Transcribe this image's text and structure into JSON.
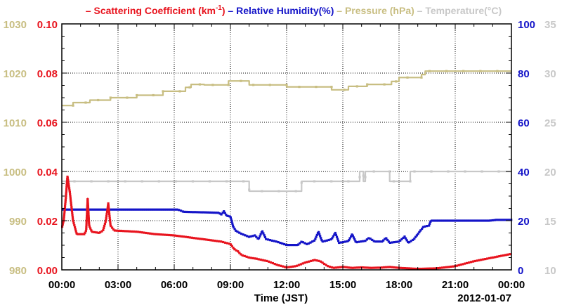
{
  "chart_data": {
    "type": "line",
    "legend": [
      {
        "prefix": "– ",
        "text": "Scattering Coefficient (km",
        "sup": "-1",
        "suffix": ")",
        "color": "#e8141e"
      },
      {
        "prefix": " – ",
        "text": "Relative Humidity(%)",
        "sup": "",
        "suffix": "",
        "color": "#1414c8"
      },
      {
        "prefix": " – ",
        "text": "Pressure (hPa)",
        "sup": "",
        "suffix": "",
        "color": "#c8be82"
      },
      {
        "prefix": " – ",
        "text": "Temperature",
        "sup": "",
        "suffix": "(°C)",
        "color": "#c8c8c8"
      }
    ],
    "xlabel": "Time (JST)",
    "date_label": "2012-01-07",
    "x_ticks": [
      "00:00",
      "03:00",
      "06:00",
      "09:00",
      "12:00",
      "15:00",
      "18:00",
      "21:00",
      "00:00"
    ],
    "x_range_hours": [
      0,
      24
    ],
    "axes": {
      "pressure": {
        "ticks": [
          "980",
          "990",
          "1000",
          "1010",
          "1020",
          "1030"
        ],
        "range": [
          980,
          1030
        ],
        "color": "#c8be82"
      },
      "scattering": {
        "ticks": [
          "0.00",
          "0.02",
          "0.04",
          "0.06",
          "0.08",
          "0.10"
        ],
        "range": [
          0,
          0.1
        ],
        "color": "#e8141e"
      },
      "humidity": {
        "ticks": [
          "0",
          "20",
          "40",
          "60",
          "80",
          "100"
        ],
        "range": [
          0,
          100
        ],
        "color": "#1414c8"
      },
      "temperature": {
        "ticks": [
          "10",
          "15",
          "20",
          "25",
          "30",
          "35"
        ],
        "range": [
          10,
          35
        ],
        "color": "#c8c8c8"
      }
    },
    "grid": true,
    "series": [
      {
        "name": "Pressure (hPa)",
        "axis": "pressure",
        "color": "#c8be82",
        "step": true,
        "points": [
          [
            0,
            1013.4
          ],
          [
            0.6,
            1013.4
          ],
          [
            0.6,
            1014.0
          ],
          [
            1.5,
            1014.0
          ],
          [
            1.5,
            1014.5
          ],
          [
            2.6,
            1014.5
          ],
          [
            2.6,
            1015.0
          ],
          [
            4.0,
            1015.0
          ],
          [
            4.0,
            1015.5
          ],
          [
            5.4,
            1015.5
          ],
          [
            5.4,
            1016.3
          ],
          [
            6.6,
            1016.3
          ],
          [
            6.6,
            1017.1
          ],
          [
            6.9,
            1017.1
          ],
          [
            6.9,
            1017.7
          ],
          [
            7.6,
            1017.7
          ],
          [
            7.6,
            1017.6
          ],
          [
            8.9,
            1017.6
          ],
          [
            8.9,
            1018.4
          ],
          [
            10.0,
            1018.4
          ],
          [
            10.0,
            1017.6
          ],
          [
            12.0,
            1017.6
          ],
          [
            12.0,
            1017.2
          ],
          [
            14.4,
            1017.2
          ],
          [
            14.4,
            1016.6
          ],
          [
            15.3,
            1016.6
          ],
          [
            15.3,
            1017.3
          ],
          [
            16.3,
            1017.3
          ],
          [
            16.3,
            1017.7
          ],
          [
            17.6,
            1017.7
          ],
          [
            17.6,
            1018.3
          ],
          [
            18.0,
            1018.3
          ],
          [
            18.0,
            1019.1
          ],
          [
            19.2,
            1019.1
          ],
          [
            19.2,
            1019.7
          ],
          [
            19.4,
            1019.7
          ],
          [
            19.4,
            1020.4
          ],
          [
            24,
            1020.4
          ]
        ]
      },
      {
        "name": "Temperature (°C)",
        "axis": "temperature",
        "color": "#c8c8c8",
        "step": true,
        "points": [
          [
            0,
            19.0
          ],
          [
            10.0,
            19.0
          ],
          [
            10.0,
            18.0
          ],
          [
            12.8,
            18.0
          ],
          [
            12.8,
            19.0
          ],
          [
            15.9,
            19.0
          ],
          [
            15.9,
            20.0
          ],
          [
            16.1,
            20.0
          ],
          [
            16.1,
            19.0
          ],
          [
            16.2,
            19.0
          ],
          [
            16.2,
            20.0
          ],
          [
            17.5,
            20.0
          ],
          [
            17.5,
            19.0
          ],
          [
            18.6,
            19.0
          ],
          [
            18.6,
            20.0
          ],
          [
            24,
            20.0
          ]
        ]
      },
      {
        "name": "Relative Humidity(%)",
        "axis": "humidity",
        "color": "#1414c8",
        "step": false,
        "points": [
          [
            0,
            24.5
          ],
          [
            3,
            24.5
          ],
          [
            6.2,
            24.5
          ],
          [
            6.5,
            23.6
          ],
          [
            7.5,
            23.4
          ],
          [
            8.4,
            23.2
          ],
          [
            8.5,
            22.4
          ],
          [
            8.65,
            23.8
          ],
          [
            8.8,
            22.0
          ],
          [
            9.0,
            21.7
          ],
          [
            9.15,
            17.5
          ],
          [
            9.3,
            15.8
          ],
          [
            9.6,
            14.6
          ],
          [
            10.0,
            13.4
          ],
          [
            10.3,
            14.0
          ],
          [
            10.5,
            12.5
          ],
          [
            10.7,
            15.8
          ],
          [
            10.9,
            12.5
          ],
          [
            11.5,
            11.4
          ],
          [
            12.0,
            10.1
          ],
          [
            12.6,
            10.1
          ],
          [
            12.8,
            11.5
          ],
          [
            13.1,
            10.4
          ],
          [
            13.5,
            12.0
          ],
          [
            13.7,
            15.5
          ],
          [
            13.9,
            11.5
          ],
          [
            14.2,
            12.0
          ],
          [
            14.4,
            12.5
          ],
          [
            14.6,
            15.0
          ],
          [
            14.8,
            11.0
          ],
          [
            15.3,
            11.7
          ],
          [
            15.5,
            14.5
          ],
          [
            15.7,
            11.2
          ],
          [
            16.2,
            11.8
          ],
          [
            16.4,
            13.0
          ],
          [
            16.7,
            11.5
          ],
          [
            17.1,
            11.5
          ],
          [
            17.3,
            13.0
          ],
          [
            17.5,
            11.0
          ],
          [
            18.0,
            11.5
          ],
          [
            18.3,
            13.5
          ],
          [
            18.5,
            11.0
          ],
          [
            18.8,
            12.5
          ],
          [
            19.0,
            14.5
          ],
          [
            19.3,
            17.5
          ],
          [
            19.6,
            18.0
          ],
          [
            19.7,
            20.0
          ],
          [
            20.0,
            20.0
          ],
          [
            22.8,
            20.0
          ],
          [
            23.2,
            20.3
          ],
          [
            24,
            20.3
          ]
        ]
      },
      {
        "name": "Scattering Coefficient (km-1)",
        "axis": "scattering",
        "color": "#e8141e",
        "step": false,
        "points": [
          [
            0,
            0.017
          ],
          [
            0.1,
            0.02
          ],
          [
            0.2,
            0.028
          ],
          [
            0.3,
            0.038
          ],
          [
            0.42,
            0.032
          ],
          [
            0.6,
            0.02
          ],
          [
            0.8,
            0.0145
          ],
          [
            1.2,
            0.0145
          ],
          [
            1.3,
            0.016
          ],
          [
            1.38,
            0.029
          ],
          [
            1.46,
            0.018
          ],
          [
            1.6,
            0.0155
          ],
          [
            2.0,
            0.015
          ],
          [
            2.2,
            0.016
          ],
          [
            2.35,
            0.02
          ],
          [
            2.48,
            0.027
          ],
          [
            2.6,
            0.018
          ],
          [
            2.8,
            0.016
          ],
          [
            4.0,
            0.0155
          ],
          [
            5.0,
            0.0145
          ],
          [
            6.0,
            0.014
          ],
          [
            7.0,
            0.013
          ],
          [
            7.5,
            0.0125
          ],
          [
            8.0,
            0.012
          ],
          [
            8.5,
            0.0115
          ],
          [
            9.0,
            0.0105
          ],
          [
            9.2,
            0.0085
          ],
          [
            9.4,
            0.0075
          ],
          [
            9.6,
            0.006
          ],
          [
            10.0,
            0.005
          ],
          [
            10.4,
            0.0045
          ],
          [
            10.7,
            0.004
          ],
          [
            11.0,
            0.0035
          ],
          [
            11.5,
            0.002
          ],
          [
            12.0,
            0.001
          ],
          [
            12.5,
            0.0015
          ],
          [
            13.0,
            0.003
          ],
          [
            13.5,
            0.004
          ],
          [
            13.8,
            0.0035
          ],
          [
            14.2,
            0.0015
          ],
          [
            14.5,
            0.0008
          ],
          [
            15.0,
            0.0012
          ],
          [
            15.5,
            0.0008
          ],
          [
            16.0,
            0.001
          ],
          [
            16.5,
            0.0008
          ],
          [
            17.0,
            0.0009
          ],
          [
            17.5,
            0.0012
          ],
          [
            18.0,
            0.0008
          ],
          [
            19.0,
            0.0004
          ],
          [
            20.0,
            0.0006
          ],
          [
            21.0,
            0.0015
          ],
          [
            22.0,
            0.0035
          ],
          [
            23.0,
            0.005
          ],
          [
            24,
            0.0065
          ]
        ]
      }
    ]
  }
}
